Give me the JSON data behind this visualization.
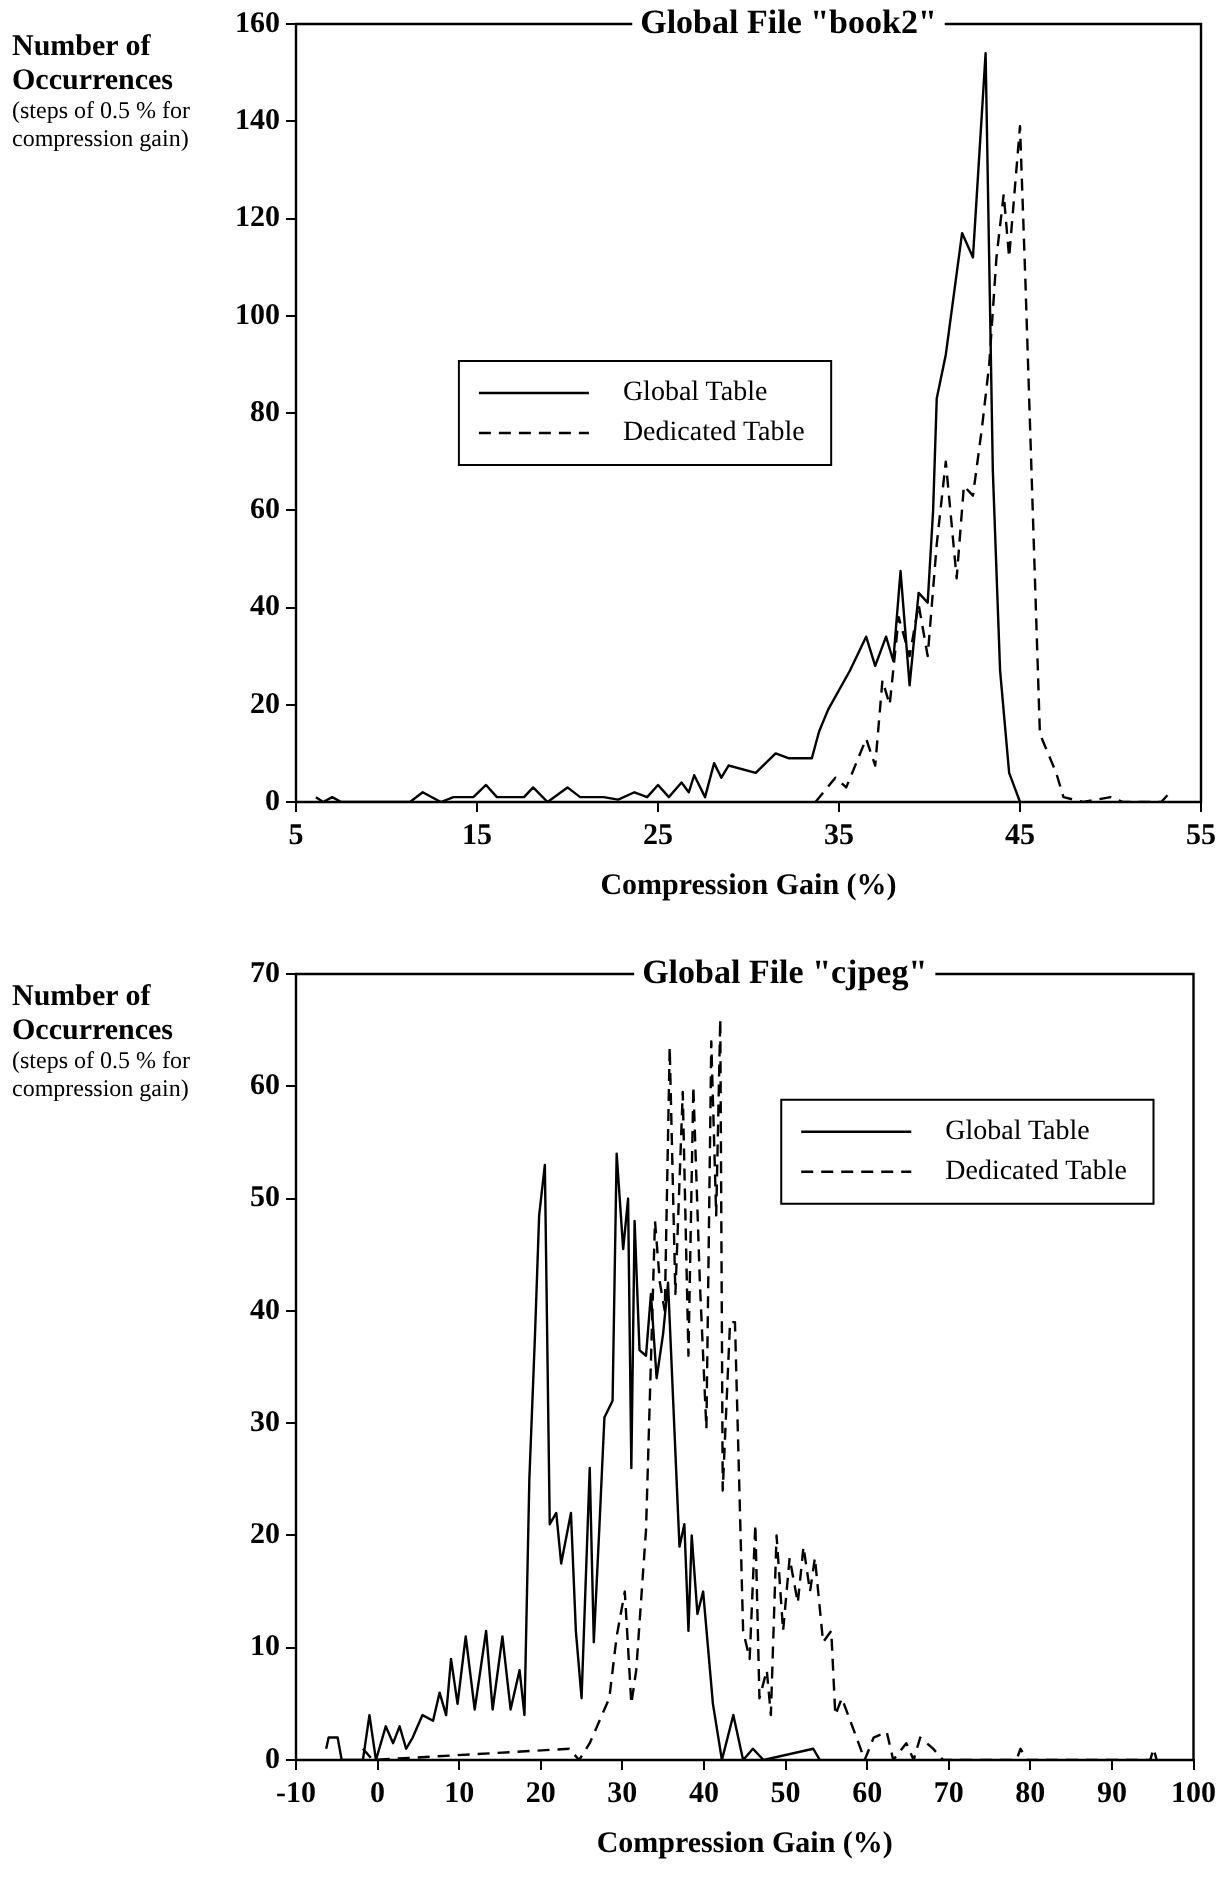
{
  "chart_data": [
    {
      "type": "line",
      "title": "Global File \"book2\"",
      "xlabel": "Compression Gain (%)",
      "ylabel": "Number of Occurrences",
      "annotations": [
        "(steps of 0.5 % for compression gain)"
      ],
      "xlim": [
        5,
        55
      ],
      "xticks": [
        5,
        15,
        25,
        35,
        45,
        55
      ],
      "ylim": [
        0,
        160
      ],
      "yticks": [
        0,
        20,
        40,
        60,
        80,
        100,
        120,
        140,
        160
      ],
      "grid": false,
      "legend": "center left",
      "marker": "none",
      "series": [
        {
          "name": "Global Table",
          "color": "#000000",
          "line_style": "solid",
          "x": [
            6.1,
            6.5,
            7,
            7.5,
            11.3,
            12,
            13,
            13.7,
            14.8,
            15.5,
            16.1,
            17.6,
            18.1,
            18.9,
            20,
            20.7,
            22,
            22.8,
            23.7,
            24.4,
            25,
            25.6,
            26.3,
            26.7,
            27,
            27.6,
            28.1,
            28.5,
            28.9,
            30.4,
            31.5,
            32.2,
            33.5,
            33.9,
            34.4,
            35.6,
            36.5,
            37,
            37.6,
            38,
            38.4,
            38.9,
            39.4,
            39.9,
            40.2,
            40.4,
            40.9,
            41.8,
            42.4,
            43.1,
            43.5,
            43.9,
            44.4,
            45
          ],
          "values": [
            1,
            0,
            1,
            0,
            0,
            2,
            0,
            1,
            1,
            3.5,
            1,
            1,
            3,
            0,
            3,
            1,
            1,
            0.5,
            2,
            1,
            3.5,
            1,
            4,
            2,
            5.5,
            1,
            8,
            5,
            7.5,
            6,
            10,
            9,
            9,
            14.5,
            19,
            27,
            34,
            28,
            34,
            29,
            47.5,
            24,
            43,
            41,
            60,
            83,
            92,
            117,
            112,
            154,
            68,
            27,
            6,
            0
          ]
        },
        {
          "name": "Dedicated Table",
          "color": "#000000",
          "line_style": "dashed",
          "x": [
            33.7,
            34.8,
            35.4,
            36.5,
            37,
            37.4,
            37.8,
            38.3,
            38.9,
            39.4,
            39.9,
            40.4,
            40.9,
            41.5,
            41.9,
            42.4,
            42.9,
            43.3,
            43.7,
            44.1,
            44.4,
            45,
            45.3,
            46.1,
            47,
            47.4,
            48.5,
            50,
            50.7,
            52.8,
            53.3
          ],
          "values": [
            0,
            5,
            3,
            13,
            7.5,
            25,
            20,
            38,
            30,
            40.6,
            30,
            53,
            70,
            46,
            65,
            63,
            77,
            90,
            112,
            125,
            112,
            139,
            107,
            14,
            6,
            1,
            0,
            1,
            0,
            0,
            2
          ]
        }
      ]
    },
    {
      "type": "line",
      "title": "Global File \"cjpeg\"",
      "xlabel": "Compression Gain (%)",
      "ylabel": "Number of Occurrences",
      "annotations": [
        "(steps of 0.5 % for compression gain)"
      ],
      "xlim": [
        -10,
        100
      ],
      "xticks": [
        -10,
        0,
        10,
        20,
        30,
        40,
        50,
        60,
        70,
        80,
        90,
        100
      ],
      "ylim": [
        0,
        70
      ],
      "yticks": [
        0,
        10,
        20,
        30,
        40,
        50,
        60,
        70
      ],
      "grid": false,
      "legend": "top right",
      "marker": "none",
      "series": [
        {
          "name": "Global Table",
          "color": "#000000",
          "line_style": "solid",
          "x": [
            -6.3,
            -6,
            -4.9,
            -4.4,
            -1.8,
            -1,
            -0.2,
            1,
            1.9,
            2.7,
            3.5,
            4.3,
            5.5,
            6.8,
            7.6,
            8.4,
            9,
            9.8,
            10.8,
            11.9,
            13.3,
            14.1,
            15.3,
            16.3,
            17.4,
            18,
            18.6,
            19.3,
            19.8,
            20.5,
            21.1,
            21.9,
            22.5,
            23.7,
            24.3,
            25,
            26,
            26.5,
            27.2,
            27.8,
            28.8,
            29.3,
            30.1,
            30.7,
            31.1,
            31.5,
            32.1,
            32.9,
            33.5,
            34.2,
            35,
            35.6,
            37,
            37.6,
            38.1,
            38.5,
            39.2,
            39.9,
            41.1,
            42.2,
            43.6,
            44.8,
            46,
            47.3,
            53.4,
            54.2
          ],
          "values": [
            1,
            2,
            2,
            0,
            0,
            4,
            0,
            3,
            1.5,
            3,
            1,
            2,
            4,
            3.5,
            6,
            4,
            9,
            5,
            11,
            4.5,
            11.5,
            4.5,
            11,
            4.5,
            8,
            4,
            25,
            38,
            48.5,
            53,
            21,
            22,
            17.5,
            22,
            11.5,
            5.5,
            26,
            10.5,
            21,
            30.5,
            32,
            54,
            45.5,
            50,
            26,
            48,
            36.5,
            36,
            41.5,
            34,
            38,
            42.5,
            19,
            21,
            11.5,
            20,
            13,
            15,
            5,
            0,
            4,
            0,
            1,
            0,
            1,
            0
          ]
        },
        {
          "name": "Dedicated Table",
          "color": "#000000",
          "line_style": "dashed",
          "x": [
            -1.8,
            -0.6,
            23.5,
            24.7,
            26,
            27.2,
            28.4,
            29.3,
            30.3,
            31.1,
            31.7,
            32.9,
            34,
            34.6,
            35.2,
            35.8,
            36.5,
            37.4,
            38.1,
            38.7,
            39.5,
            40.3,
            40.9,
            41.5,
            42,
            42.3,
            43.2,
            43.8,
            44.8,
            45.6,
            46.3,
            46.8,
            47.7,
            48.2,
            48.9,
            49.7,
            50.5,
            51.5,
            52.2,
            53,
            53.6,
            54.6,
            55.6,
            56.1,
            56.9,
            58.7,
            59.7,
            60.8,
            62.4,
            63.2,
            64.8,
            65.7,
            66.5,
            68.1,
            69.3,
            78.3,
            78.8,
            79.6,
            94.7,
            95.1,
            95.5
          ],
          "values": [
            1,
            0,
            1,
            0,
            1.5,
            3.5,
            5.5,
            11,
            15,
            5,
            8,
            20.5,
            48,
            42.5,
            40,
            63.5,
            41.5,
            59.5,
            36,
            60,
            42.5,
            29.5,
            64,
            48.5,
            66,
            24,
            39,
            39,
            11.5,
            9,
            21,
            5.5,
            8,
            4,
            20,
            11.5,
            18,
            14,
            19,
            15,
            18,
            10.5,
            11.5,
            4,
            5.5,
            2,
            0,
            2,
            2.5,
            0,
            1.5,
            0,
            2,
            1,
            0,
            0,
            1,
            0,
            0,
            1,
            0
          ]
        }
      ]
    }
  ]
}
